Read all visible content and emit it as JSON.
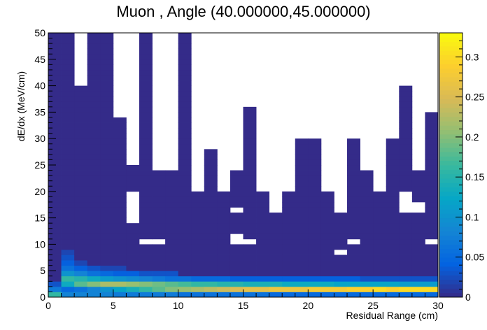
{
  "chart_data": {
    "type": "heatmap",
    "title": "Muon , Angle (40.000000,45.000000)",
    "xlabel": "Residual Range (cm)",
    "ylabel": "dE/dx (MeV/cm)",
    "xlim": [
      0,
      30
    ],
    "ylim": [
      0,
      50
    ],
    "zlim": [
      0,
      0.33
    ],
    "x_ticks": [
      0,
      5,
      10,
      15,
      20,
      25,
      30
    ],
    "y_ticks": [
      0,
      5,
      10,
      15,
      20,
      25,
      30,
      35,
      40,
      45,
      50
    ],
    "z_ticks": [
      0,
      0.05,
      0.1,
      0.15,
      0.2,
      0.25,
      0.3
    ],
    "x_bins": 30,
    "y_bins": 50,
    "palette": "kBird",
    "colors": [
      "#352a87",
      "#0363e1",
      "#1485d4",
      "#06a7c6",
      "#38b99e",
      "#92bf73",
      "#d9ba56",
      "#fcce2e",
      "#f9fb0e"
    ],
    "legend": "right colorbar",
    "grid": false,
    "cells": [
      [
        0,
        0,
        0.16
      ],
      [
        0,
        1,
        0.07
      ],
      [
        0,
        2,
        0.03
      ],
      [
        1,
        0,
        0.08
      ],
      [
        1,
        1,
        0.05
      ],
      [
        1,
        2,
        0.13
      ],
      [
        1,
        3,
        0.16
      ],
      [
        1,
        4,
        0.1
      ],
      [
        1,
        5,
        0.06
      ],
      [
        1,
        6,
        0.04
      ],
      [
        1,
        7,
        0.03
      ],
      [
        1,
        8,
        0.02
      ],
      [
        2,
        0,
        0.08
      ],
      [
        2,
        1,
        0.06
      ],
      [
        2,
        2,
        0.18
      ],
      [
        2,
        3,
        0.15
      ],
      [
        2,
        4,
        0.08
      ],
      [
        2,
        5,
        0.04
      ],
      [
        2,
        6,
        0.02
      ],
      [
        3,
        0,
        0.08
      ],
      [
        3,
        1,
        0.08
      ],
      [
        3,
        2,
        0.2
      ],
      [
        3,
        3,
        0.13
      ],
      [
        3,
        4,
        0.06
      ],
      [
        3,
        5,
        0.03
      ],
      [
        4,
        0,
        0.08
      ],
      [
        4,
        1,
        0.1
      ],
      [
        4,
        2,
        0.22
      ],
      [
        4,
        3,
        0.11
      ],
      [
        4,
        4,
        0.05
      ],
      [
        4,
        5,
        0.02
      ],
      [
        5,
        0,
        0.07
      ],
      [
        5,
        1,
        0.12
      ],
      [
        5,
        2,
        0.22
      ],
      [
        5,
        3,
        0.1
      ],
      [
        5,
        4,
        0.04
      ],
      [
        5,
        5,
        0.02
      ],
      [
        6,
        0,
        0.07
      ],
      [
        6,
        1,
        0.14
      ],
      [
        6,
        2,
        0.21
      ],
      [
        6,
        3,
        0.09
      ],
      [
        6,
        4,
        0.04
      ],
      [
        7,
        0,
        0.07
      ],
      [
        7,
        1,
        0.16
      ],
      [
        7,
        2,
        0.2
      ],
      [
        7,
        3,
        0.08
      ],
      [
        7,
        4,
        0.03
      ],
      [
        8,
        0,
        0.07
      ],
      [
        8,
        1,
        0.18
      ],
      [
        8,
        2,
        0.19
      ],
      [
        8,
        3,
        0.07
      ],
      [
        8,
        4,
        0.03
      ],
      [
        9,
        0,
        0.07
      ],
      [
        9,
        1,
        0.2
      ],
      [
        9,
        2,
        0.18
      ],
      [
        9,
        3,
        0.06
      ],
      [
        9,
        4,
        0.03
      ],
      [
        10,
        0,
        0.06
      ],
      [
        10,
        1,
        0.21
      ],
      [
        10,
        2,
        0.17
      ],
      [
        10,
        3,
        0.06
      ],
      [
        11,
        0,
        0.06
      ],
      [
        11,
        1,
        0.22
      ],
      [
        11,
        2,
        0.16
      ],
      [
        11,
        3,
        0.05
      ],
      [
        12,
        0,
        0.06
      ],
      [
        12,
        1,
        0.23
      ],
      [
        12,
        2,
        0.16
      ],
      [
        12,
        3,
        0.05
      ],
      [
        13,
        0,
        0.06
      ],
      [
        13,
        1,
        0.24
      ],
      [
        13,
        2,
        0.15
      ],
      [
        13,
        3,
        0.05
      ],
      [
        14,
        0,
        0.06
      ],
      [
        14,
        1,
        0.25
      ],
      [
        14,
        2,
        0.15
      ],
      [
        14,
        3,
        0.04
      ],
      [
        15,
        0,
        0.06
      ],
      [
        15,
        1,
        0.26
      ],
      [
        15,
        2,
        0.14
      ],
      [
        15,
        3,
        0.04
      ],
      [
        16,
        0,
        0.06
      ],
      [
        16,
        1,
        0.26
      ],
      [
        16,
        2,
        0.14
      ],
      [
        16,
        3,
        0.04
      ],
      [
        17,
        0,
        0.05
      ],
      [
        17,
        1,
        0.27
      ],
      [
        17,
        2,
        0.14
      ],
      [
        17,
        3,
        0.04
      ],
      [
        18,
        0,
        0.05
      ],
      [
        18,
        1,
        0.27
      ],
      [
        18,
        2,
        0.13
      ],
      [
        18,
        3,
        0.04
      ],
      [
        19,
        0,
        0.05
      ],
      [
        19,
        1,
        0.27
      ],
      [
        19,
        2,
        0.13
      ],
      [
        19,
        3,
        0.04
      ],
      [
        20,
        0,
        0.05
      ],
      [
        20,
        1,
        0.28
      ],
      [
        20,
        2,
        0.13
      ],
      [
        20,
        3,
        0.04
      ],
      [
        21,
        0,
        0.05
      ],
      [
        21,
        1,
        0.28
      ],
      [
        21,
        2,
        0.13
      ],
      [
        21,
        3,
        0.04
      ],
      [
        22,
        0,
        0.05
      ],
      [
        22,
        1,
        0.28
      ],
      [
        22,
        2,
        0.12
      ],
      [
        22,
        3,
        0.04
      ],
      [
        23,
        0,
        0.05
      ],
      [
        23,
        1,
        0.29
      ],
      [
        23,
        2,
        0.12
      ],
      [
        23,
        3,
        0.04
      ],
      [
        24,
        0,
        0.05
      ],
      [
        24,
        1,
        0.29
      ],
      [
        24,
        2,
        0.12
      ],
      [
        24,
        3,
        0.03
      ],
      [
        25,
        0,
        0.05
      ],
      [
        25,
        1,
        0.3
      ],
      [
        25,
        2,
        0.12
      ],
      [
        25,
        3,
        0.03
      ],
      [
        26,
        0,
        0.05
      ],
      [
        26,
        1,
        0.29
      ],
      [
        26,
        2,
        0.12
      ],
      [
        26,
        3,
        0.03
      ],
      [
        27,
        0,
        0.05
      ],
      [
        27,
        1,
        0.3
      ],
      [
        27,
        2,
        0.11
      ],
      [
        27,
        3,
        0.03
      ],
      [
        28,
        0,
        0.05
      ],
      [
        28,
        1,
        0.3
      ],
      [
        28,
        2,
        0.11
      ],
      [
        28,
        3,
        0.03
      ],
      [
        29,
        0,
        0.05
      ],
      [
        29,
        1,
        0.3
      ],
      [
        29,
        2,
        0.11
      ],
      [
        29,
        3,
        0.03
      ]
    ],
    "low_occupancy_value": 0.001,
    "low_occupancy_columns": [
      [
        [
          0,
          50
        ]
      ],
      [
        [
          0,
          50
        ]
      ],
      [
        [
          0,
          40
        ]
      ],
      [
        [
          0,
          50
        ]
      ],
      [
        [
          0,
          50
        ]
      ],
      [
        [
          0,
          34
        ]
      ],
      [
        [
          0,
          14
        ],
        [
          20,
          25
        ]
      ],
      [
        [
          0,
          10
        ],
        [
          11,
          24
        ],
        [
          24,
          50
        ]
      ],
      [
        [
          0,
          10
        ],
        [
          11,
          24
        ]
      ],
      [
        [
          0,
          24
        ]
      ],
      [
        [
          0,
          50
        ]
      ],
      [
        [
          0,
          20
        ]
      ],
      [
        [
          0,
          28
        ]
      ],
      [
        [
          0,
          20
        ]
      ],
      [
        [
          0,
          10
        ],
        [
          12,
          16
        ],
        [
          17,
          24
        ]
      ],
      [
        [
          0,
          10
        ],
        [
          11,
          36
        ]
      ],
      [
        [
          0,
          20
        ]
      ],
      [
        [
          0,
          16
        ]
      ],
      [
        [
          0,
          20
        ]
      ],
      [
        [
          0,
          30
        ]
      ],
      [
        [
          0,
          30
        ]
      ],
      [
        [
          0,
          20
        ]
      ],
      [
        [
          0,
          8
        ],
        [
          9,
          16
        ]
      ],
      [
        [
          0,
          10
        ],
        [
          11,
          30
        ]
      ],
      [
        [
          0,
          24
        ]
      ],
      [
        [
          0,
          20
        ]
      ],
      [
        [
          0,
          30
        ]
      ],
      [
        [
          0,
          16
        ],
        [
          20,
          40
        ]
      ],
      [
        [
          0,
          16
        ],
        [
          18,
          24
        ]
      ],
      [
        [
          0,
          10
        ],
        [
          11,
          35
        ]
      ]
    ]
  }
}
